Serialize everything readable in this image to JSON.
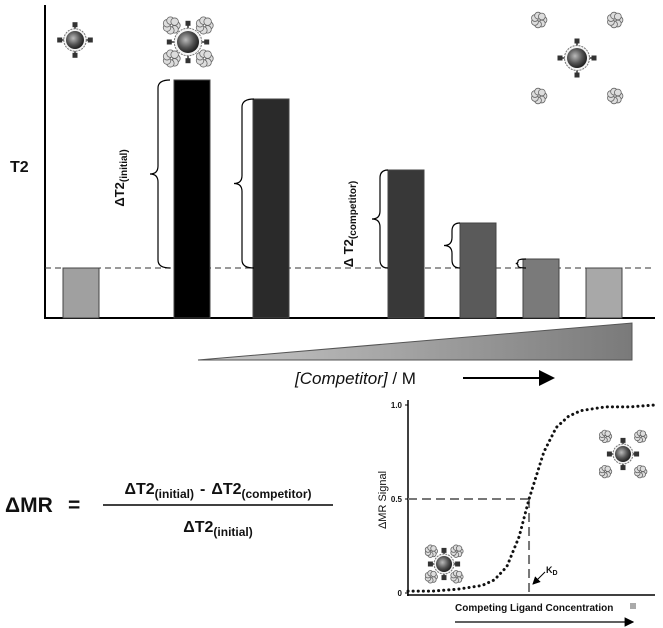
{
  "bar_chart": {
    "y_label": "T2",
    "values": [
      50,
      238,
      219,
      148,
      95,
      59,
      50
    ],
    "ylim": [
      0,
      313
    ],
    "delta_initial": {
      "symbol": "ΔT2",
      "sub": "(initial)"
    },
    "delta_competitor": {
      "symbol": "Δ T2",
      "sub": "(competitor)"
    },
    "x_label": "[Competitor]",
    "x_unit": " / M"
  },
  "equation": {
    "lhs": "ΔMR",
    "equals": "=",
    "num_a": {
      "symbol": "ΔT2",
      "sub": "(initial)"
    },
    "minus": "-",
    "num_b": {
      "symbol": "ΔT2",
      "sub": "(competitor)"
    },
    "den": {
      "symbol": "ΔT2",
      "sub": "(initial)"
    }
  },
  "curve": {
    "type": "line",
    "y_label": "ΔMR Signal",
    "x_label": "Competing Ligand Concentration",
    "x": [
      0,
      0.1,
      0.2,
      0.3,
      0.35,
      0.4,
      0.45,
      0.49,
      0.55,
      0.6,
      0.65,
      0.7,
      0.8,
      0.9,
      1
    ],
    "y": [
      0.01,
      0.01,
      0.02,
      0.04,
      0.07,
      0.14,
      0.3,
      0.5,
      0.75,
      0.88,
      0.94,
      0.97,
      0.99,
      0.99,
      1
    ],
    "xlim": [
      0,
      1
    ],
    "ylim": [
      0,
      1
    ],
    "yticks": [
      0,
      0.5,
      {
        "value": 1,
        "label": "1.0"
      }
    ],
    "kd": {
      "symbol": "K",
      "sub": "D"
    }
  }
}
